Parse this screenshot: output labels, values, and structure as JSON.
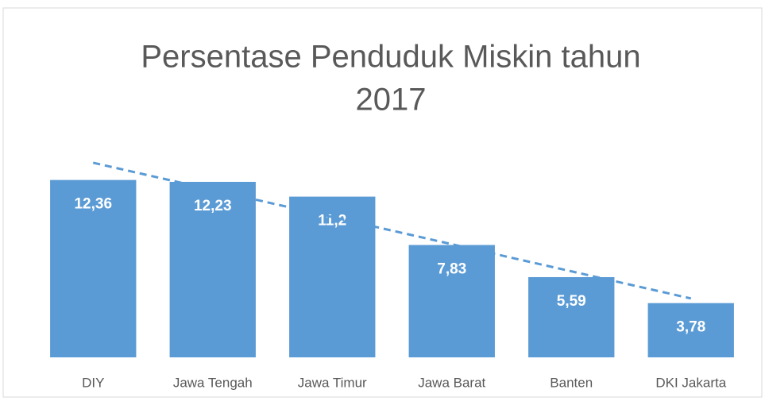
{
  "chart_data": {
    "type": "bar",
    "title_lines": [
      "Persentase Penduduk Miskin tahun",
      "2017"
    ],
    "categories": [
      "DIY",
      "Jawa Tengah",
      "Jawa Timur",
      "Jawa Barat",
      "Banten",
      "DKI Jakarta"
    ],
    "values": [
      12.36,
      12.23,
      11.2,
      7.83,
      5.59,
      3.78
    ],
    "value_labels": [
      "12,36",
      "12,23",
      "11,2",
      "7,83",
      "5,59",
      "3,78"
    ],
    "color": "#5b9bd5",
    "trendline": true,
    "trendline_color": "#5b9bd5",
    "ylim": [
      0,
      14
    ]
  }
}
